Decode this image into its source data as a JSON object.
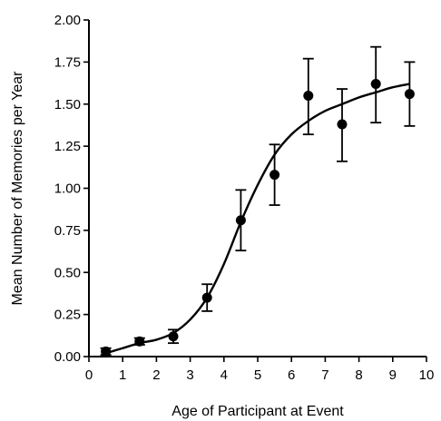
{
  "chart_data": {
    "type": "scatter",
    "xlabel": "Age of Participant at Event",
    "ylabel": "Mean Number of Memories per Year",
    "xlim": [
      0,
      10
    ],
    "ylim": [
      0,
      2
    ],
    "xticks": [
      "0",
      "1",
      "2",
      "3",
      "4",
      "5",
      "6",
      "7",
      "8",
      "9",
      "10"
    ],
    "yticks": [
      "0.00",
      "0.25",
      "0.50",
      "0.75",
      "1.00",
      "1.25",
      "1.50",
      "1.75",
      "2.00"
    ],
    "grid": false,
    "series": [
      {
        "x": [
          0.5,
          1.5,
          2.5,
          3.5,
          4.5,
          5.5,
          6.5,
          7.5,
          8.5,
          9.5
        ],
        "y": [
          0.03,
          0.09,
          0.12,
          0.35,
          0.81,
          1.08,
          1.55,
          1.38,
          1.62,
          1.56
        ],
        "y_low": [
          0.01,
          0.07,
          0.08,
          0.27,
          0.63,
          0.9,
          1.32,
          1.16,
          1.39,
          1.37
        ],
        "y_high": [
          0.05,
          0.11,
          0.16,
          0.43,
          0.99,
          1.26,
          1.77,
          1.59,
          1.84,
          1.75
        ]
      }
    ],
    "fit_curve": {
      "x": [
        0.5,
        1,
        1.5,
        2,
        2.5,
        3,
        3.5,
        4,
        4.5,
        5,
        5.5,
        6,
        6.5,
        7,
        7.5,
        8,
        8.5,
        9,
        9.5
      ],
      "y": [
        0.02,
        0.05,
        0.08,
        0.1,
        0.14,
        0.22,
        0.35,
        0.55,
        0.8,
        1.02,
        1.2,
        1.32,
        1.4,
        1.46,
        1.5,
        1.54,
        1.57,
        1.6,
        1.62
      ]
    }
  }
}
